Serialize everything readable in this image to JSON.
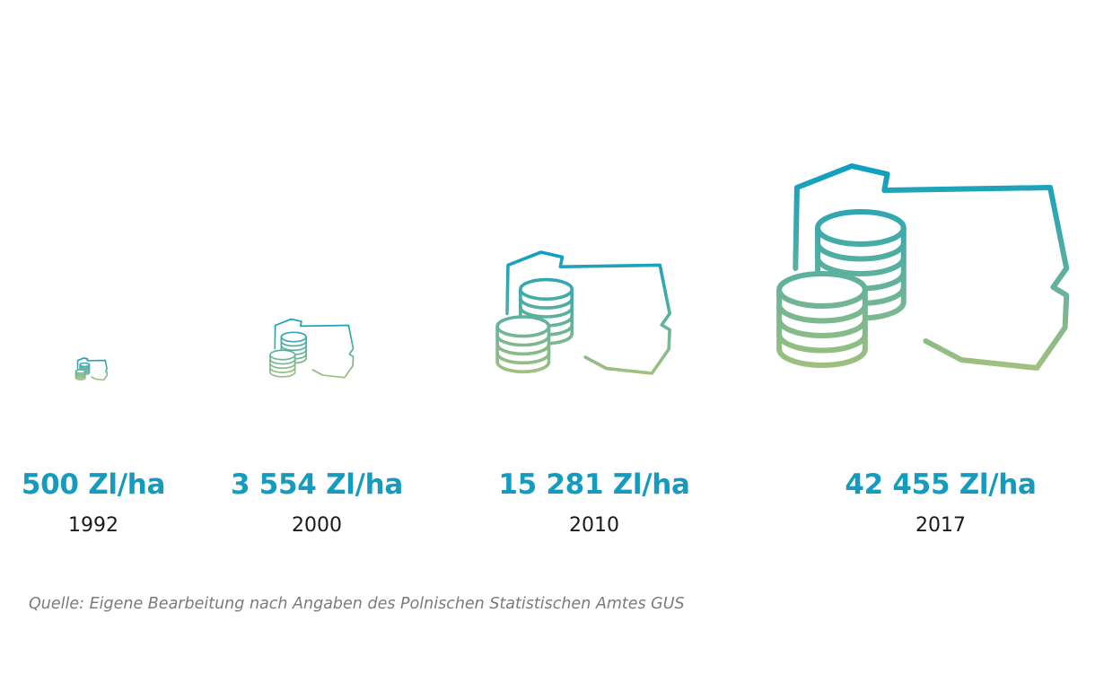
{
  "chart_data": {
    "type": "bar",
    "unit": "Zl/ha",
    "categories": [
      "1992",
      "2000",
      "2010",
      "2017"
    ],
    "values": [
      500,
      3554,
      15281,
      42455
    ],
    "value_labels": [
      "500 Zl/ha",
      "3 554 Zl/ha",
      "15 281 Zl/ha",
      "42 455 Zl/ha"
    ],
    "colors": {
      "top": "#0a9ec3",
      "bottom": "#aac27a",
      "value_text": "#149bbd",
      "year_text": "#1a1a1a",
      "source_text": "#7a7a7a"
    },
    "mark_icons": [
      "poland-map-icon",
      "coin-stack-icon"
    ]
  },
  "source": "Quelle: Eigene Bearbeitung nach Angaben des Polnischen Statistischen Amtes GUS"
}
